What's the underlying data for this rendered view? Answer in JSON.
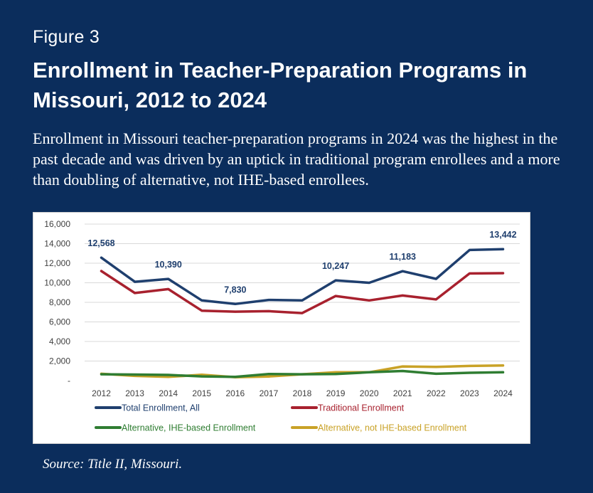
{
  "figure_label": "Figure 3",
  "title": "Enrollment in Teacher-Preparation Programs in Missouri, 2012 to 2024",
  "subtitle": "Enrollment in Missouri teacher-preparation programs in 2024 was the highest in the past decade and was driven by an uptick in traditional program enrollees and a more than doubling of alternative, not IHE-based enrollees.",
  "source": "Source: Title II, Missouri.",
  "colors": {
    "background": "#0b2d5c",
    "total": "#1f3f6e",
    "traditional": "#a8212e",
    "alt_ihe": "#2f7d32",
    "alt_not_ihe": "#c9a227",
    "label_text": "#1f3f6e"
  },
  "chart_data": {
    "type": "line",
    "x": [
      "2012",
      "2013",
      "2014",
      "2015",
      "2016",
      "2017",
      "2018",
      "2019",
      "2020",
      "2021",
      "2022",
      "2023",
      "2024"
    ],
    "ylim": [
      0,
      16000
    ],
    "yticks": [
      {
        "value": 0,
        "label": "-"
      },
      {
        "value": 2000,
        "label": "2,000"
      },
      {
        "value": 4000,
        "label": "4,000"
      },
      {
        "value": 6000,
        "label": "6,000"
      },
      {
        "value": 8000,
        "label": "8,000"
      },
      {
        "value": 10000,
        "label": "10,000"
      },
      {
        "value": 12000,
        "label": "12,000"
      },
      {
        "value": 14000,
        "label": "14,000"
      },
      {
        "value": 16000,
        "label": "16,000"
      }
    ],
    "grid": true,
    "legend_position": "bottom",
    "series": [
      {
        "name": "Total Enrollment, All",
        "color_key": "total",
        "values": [
          12568,
          10100,
          10390,
          8200,
          7830,
          8250,
          8200,
          10247,
          10000,
          11183,
          10400,
          13350,
          13442
        ]
      },
      {
        "name": "Traditional Enrollment",
        "color_key": "traditional",
        "values": [
          11200,
          8950,
          9350,
          7150,
          7050,
          7100,
          6900,
          8650,
          8200,
          8700,
          8300,
          10950,
          10980
        ]
      },
      {
        "name": "Alternative, IHE-based Enrollment",
        "color_key": "alt_ihe",
        "values": [
          650,
          620,
          580,
          430,
          380,
          680,
          650,
          680,
          850,
          980,
          700,
          800,
          850
        ]
      },
      {
        "name": "Alternative, not IHE-based Enrollment",
        "color_key": "alt_not_ihe",
        "values": [
          700,
          480,
          380,
          600,
          350,
          420,
          650,
          850,
          850,
          1450,
          1400,
          1500,
          1550
        ]
      }
    ],
    "data_labels": [
      {
        "series": 0,
        "index": 0,
        "text": "12,568"
      },
      {
        "series": 0,
        "index": 2,
        "text": "10,390"
      },
      {
        "series": 0,
        "index": 4,
        "text": "7,830"
      },
      {
        "series": 0,
        "index": 7,
        "text": "10,247"
      },
      {
        "series": 0,
        "index": 9,
        "text": "11,183"
      },
      {
        "series": 0,
        "index": 12,
        "text": "13,442"
      }
    ]
  }
}
